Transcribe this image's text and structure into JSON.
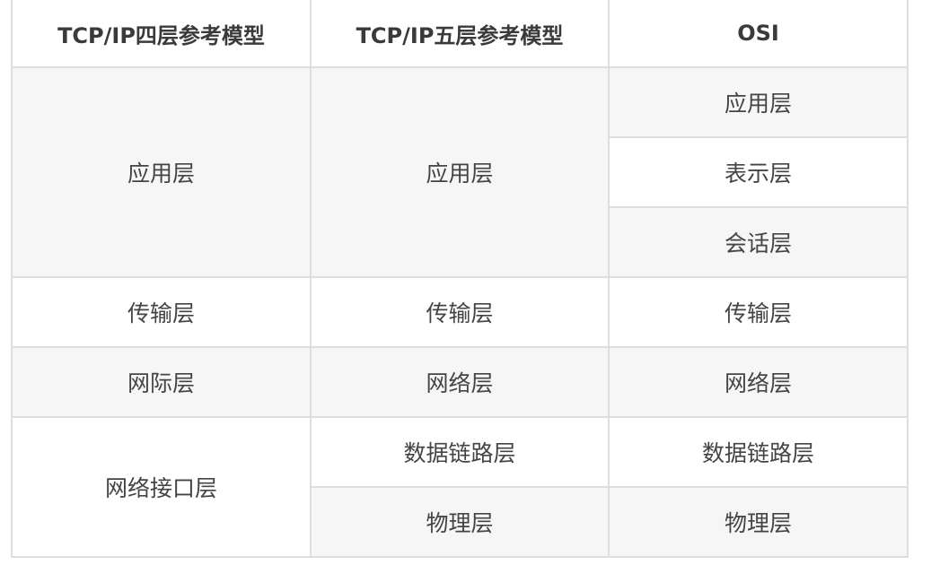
{
  "table": {
    "headers": [
      "TCP/IP四层参考模型",
      "TCP/IP五层参考模型",
      "OSI"
    ],
    "four_layer": [
      "应用层",
      "传输层",
      "网际层",
      "网络接口层"
    ],
    "five_layer": [
      "应用层",
      "传输层",
      "网络层",
      "数据链路层",
      "物理层"
    ],
    "osi": [
      "应用层",
      "表示层",
      "会话层",
      "传输层",
      "网络层",
      "数据链路层",
      "物理层"
    ]
  },
  "colors": {
    "stripe": "#f6f6f6",
    "border": "#dedede",
    "text": "#444444"
  }
}
